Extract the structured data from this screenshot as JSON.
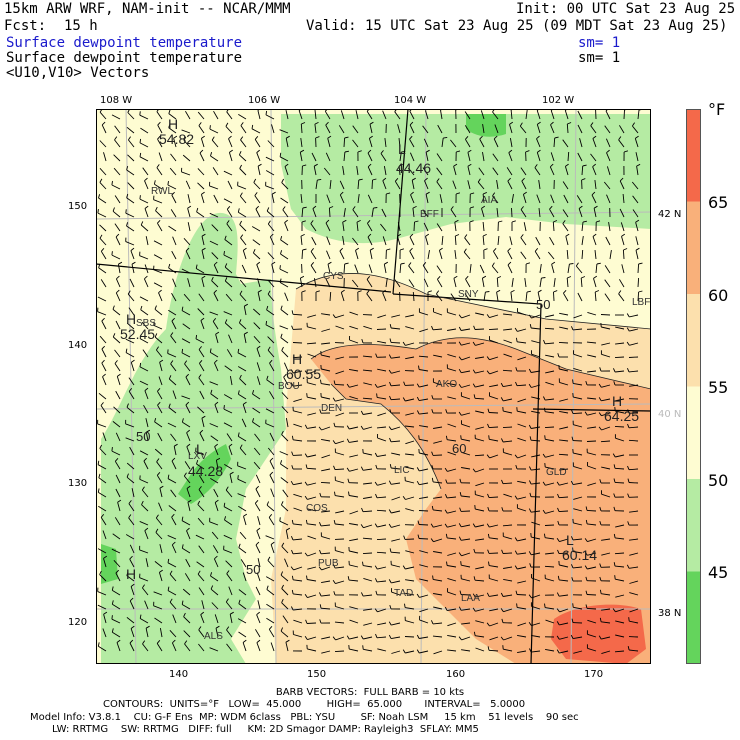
{
  "header": {
    "model_line": "15km ARW WRF, NAM-init -- NCAR/MMM",
    "init_line": "Init: 00 UTC Sat 23 Aug 25",
    "fcst_label": "Fcst:",
    "fcst_value": "15 h",
    "valid_line": "Valid: 15 UTC Sat 23 Aug 25 (09 MDT Sat 23 Aug 25)",
    "field1": "Surface dewpoint temperature",
    "field1_sm": "sm= 1",
    "field2": "Surface dewpoint temperature",
    "field2_sm": "sm= 1",
    "field3": "<U10,V10> Vectors"
  },
  "axes": {
    "top_ticks": [
      "108 W",
      "106 W",
      "104 W",
      "102 W"
    ],
    "left_ticks": [
      "150",
      "140",
      "130",
      "120"
    ],
    "bottom_ticks": [
      "140",
      "150",
      "160",
      "170"
    ],
    "right_lat": [
      "42 N",
      "40 N",
      "38 N"
    ]
  },
  "map_labels": {
    "stations": [
      "RWL",
      "BFF",
      "AIA",
      "CYS",
      "SNY",
      "LBF",
      "SBS",
      "BOU",
      "AKO",
      "DEN",
      "LIC",
      "GLD",
      "COS",
      "PUB",
      "TAD",
      "LAA",
      "ALS",
      "LXV"
    ],
    "extrema": [
      {
        "type": "H",
        "value": "54.82"
      },
      {
        "type": "L",
        "value": "44.46"
      },
      {
        "type": "H",
        "value": "52.45"
      },
      {
        "type": "H",
        "value": "60.55"
      },
      {
        "type": "L",
        "value": "44.28"
      },
      {
        "type": "H",
        "value": "64.25"
      },
      {
        "type": "L",
        "value": "60.14"
      },
      {
        "type": "H",
        "value": ""
      }
    ],
    "contour_labels": [
      "50",
      "50",
      "50",
      "60",
      "50"
    ]
  },
  "colorbar": {
    "unit": "°F",
    "labels": [
      "65",
      "60",
      "55",
      "50",
      "45"
    ],
    "colors": [
      "#f4694a",
      "#f9b07a",
      "#fce0ad",
      "#fefcd2",
      "#b5eba3",
      "#64d45c"
    ]
  },
  "footer": {
    "barb_line": "BARB VECTORS:  FULL BARB = 10 kts",
    "contours_line": "CONTOURS:  UNITS=°F   LOW=  45.000        HIGH=  65.000       INTERVAL=   5.0000",
    "model_info_line": "Model Info: V3.8.1    CU: G-F Ens  MP: WDM 6class   PBL: YSU        SF: Noah LSM     15 km    51 levels    90 sec",
    "physics_line": "LW: RRTMG    SW: RRTMG   DIFF: full     KM: 2D Smagor DAMP: Rayleigh3  SFLAY: MM5"
  }
}
